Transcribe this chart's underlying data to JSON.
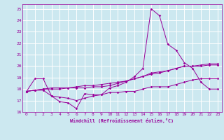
{
  "xlabel": "Windchill (Refroidissement éolien,°C)",
  "background_color": "#cce8f0",
  "grid_color": "#ffffff",
  "line_color": "#990099",
  "xlim": [
    -0.5,
    23.5
  ],
  "ylim": [
    16,
    25.4
  ],
  "yticks": [
    16,
    17,
    18,
    19,
    20,
    21,
    22,
    23,
    24,
    25
  ],
  "xticks": [
    0,
    1,
    2,
    3,
    4,
    5,
    6,
    7,
    8,
    9,
    10,
    11,
    12,
    13,
    14,
    15,
    16,
    17,
    18,
    19,
    20,
    21,
    22,
    23
  ],
  "x_main": [
    0,
    1,
    2,
    3,
    4,
    5,
    6,
    7,
    8,
    9,
    10,
    11,
    12,
    13,
    14,
    15,
    16,
    17,
    18,
    19,
    20,
    21,
    22,
    23
  ],
  "y_line1": [
    17.8,
    18.9,
    18.9,
    17.4,
    16.9,
    16.8,
    16.3,
    17.6,
    17.5,
    17.5,
    18.1,
    18.3,
    18.6,
    19.1,
    19.8,
    25.0,
    24.4,
    21.9,
    21.4,
    20.3,
    19.8,
    18.6,
    18.0,
    18.0
  ],
  "y_line2": [
    17.8,
    17.9,
    17.9,
    17.4,
    17.3,
    17.2,
    17.0,
    17.2,
    17.4,
    17.5,
    17.7,
    17.7,
    17.8,
    17.8,
    18.0,
    18.2,
    18.2,
    18.2,
    18.4,
    18.6,
    18.8,
    18.9,
    18.9,
    18.9
  ],
  "y_line3": [
    17.8,
    17.9,
    18.0,
    18.0,
    18.0,
    18.1,
    18.1,
    18.1,
    18.2,
    18.2,
    18.3,
    18.5,
    18.7,
    18.9,
    19.1,
    19.3,
    19.4,
    19.6,
    19.8,
    20.0,
    20.0,
    20.0,
    20.1,
    20.1
  ],
  "y_line4": [
    17.8,
    17.9,
    18.0,
    18.1,
    18.1,
    18.1,
    18.2,
    18.3,
    18.3,
    18.4,
    18.5,
    18.6,
    18.7,
    18.9,
    19.1,
    19.4,
    19.5,
    19.6,
    19.8,
    20.0,
    20.0,
    20.1,
    20.2,
    20.2
  ]
}
